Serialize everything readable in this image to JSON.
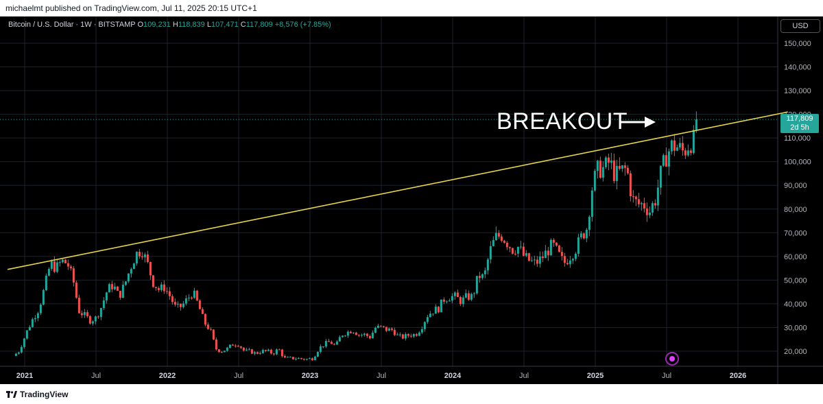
{
  "header": {
    "publisher_text": "michaelmt published on TradingView.com, Jul 11, 2025 20:15 UTC+1"
  },
  "legend": {
    "symbol": "Bitcoin / U.S. Dollar · 1W · BITSTAMP",
    "o_label": "O",
    "o_value": "109,231",
    "h_label": "H",
    "h_value": "118,839",
    "l_label": "L",
    "l_value": "107,471",
    "c_label": "C",
    "c_value": "117,809",
    "change": "+8,576 (+7.85%)"
  },
  "currency": "USD",
  "price_tag": {
    "price": "117,809",
    "countdown": "2d 5h"
  },
  "annotation": "BREAKOUT",
  "footer": {
    "brand": "TradingView"
  },
  "colors": {
    "up": "#26a69a",
    "down": "#ef5350",
    "trendline": "#e8d44d",
    "grid": "#1e222d",
    "axis_text": "#b2b5be"
  },
  "chart_data": {
    "type": "candlestick",
    "interval": "1W",
    "ylim": [
      13000,
      158000
    ],
    "y_ticks": [
      20000,
      30000,
      40000,
      50000,
      60000,
      70000,
      80000,
      90000,
      100000,
      110000,
      120000,
      130000,
      140000,
      150000
    ],
    "y_tick_labels": [
      "20,000",
      "30,000",
      "40,000",
      "50,000",
      "60,000",
      "70,000",
      "80,000",
      "90,000",
      "100,000",
      "110,000",
      "120,000",
      "130,000",
      "140,000",
      "150,000"
    ],
    "x_ticks": [
      {
        "label": "2021",
        "t": 0,
        "major": true
      },
      {
        "label": "Jul",
        "t": 0.5,
        "major": false
      },
      {
        "label": "2022",
        "t": 1,
        "major": true
      },
      {
        "label": "Jul",
        "t": 1.5,
        "major": false
      },
      {
        "label": "2023",
        "t": 2,
        "major": true
      },
      {
        "label": "Jul",
        "t": 2.5,
        "major": false
      },
      {
        "label": "2024",
        "t": 3,
        "major": true
      },
      {
        "label": "Jul",
        "t": 3.5,
        "major": false
      },
      {
        "label": "2025",
        "t": 4,
        "major": true
      },
      {
        "label": "Jul",
        "t": 4.5,
        "major": false
      },
      {
        "label": "2026",
        "t": 5,
        "major": true
      }
    ],
    "close_path": [
      [
        -0.08,
        18000
      ],
      [
        -0.04,
        20000
      ],
      [
        0.02,
        29000
      ],
      [
        0.06,
        34000
      ],
      [
        0.1,
        38000
      ],
      [
        0.14,
        47000
      ],
      [
        0.18,
        57000
      ],
      [
        0.22,
        55000
      ],
      [
        0.26,
        58000
      ],
      [
        0.3,
        57000
      ],
      [
        0.34,
        50000
      ],
      [
        0.38,
        37000
      ],
      [
        0.42,
        35000
      ],
      [
        0.46,
        33000
      ],
      [
        0.5,
        34000
      ],
      [
        0.54,
        39000
      ],
      [
        0.58,
        46000
      ],
      [
        0.62,
        48000
      ],
      [
        0.66,
        43000
      ],
      [
        0.7,
        48000
      ],
      [
        0.74,
        55000
      ],
      [
        0.78,
        61000
      ],
      [
        0.82,
        63000
      ],
      [
        0.86,
        57000
      ],
      [
        0.9,
        49000
      ],
      [
        0.94,
        46000
      ],
      [
        0.98,
        47000
      ],
      [
        1.02,
        43000
      ],
      [
        1.06,
        38000
      ],
      [
        1.1,
        39000
      ],
      [
        1.14,
        42000
      ],
      [
        1.18,
        45000
      ],
      [
        1.22,
        39000
      ],
      [
        1.26,
        32000
      ],
      [
        1.3,
        29000
      ],
      [
        1.34,
        21000
      ],
      [
        1.38,
        20000
      ],
      [
        1.42,
        21000
      ],
      [
        1.46,
        23000
      ],
      [
        1.5,
        23000
      ],
      [
        1.54,
        20000
      ],
      [
        1.58,
        20000
      ],
      [
        1.62,
        19000
      ],
      [
        1.66,
        20000
      ],
      [
        1.7,
        20000
      ],
      [
        1.74,
        19000
      ],
      [
        1.78,
        21000
      ],
      [
        1.82,
        17000
      ],
      [
        1.86,
        17000
      ],
      [
        1.9,
        17000
      ],
      [
        1.94,
        16800
      ],
      [
        1.98,
        16600
      ],
      [
        2.02,
        17000
      ],
      [
        2.06,
        21000
      ],
      [
        2.1,
        23000
      ],
      [
        2.14,
        24000
      ],
      [
        2.18,
        22000
      ],
      [
        2.22,
        27000
      ],
      [
        2.26,
        28000
      ],
      [
        2.3,
        29000
      ],
      [
        2.34,
        27000
      ],
      [
        2.38,
        27000
      ],
      [
        2.42,
        26000
      ],
      [
        2.46,
        30000
      ],
      [
        2.5,
        30000
      ],
      [
        2.54,
        29000
      ],
      [
        2.58,
        29000
      ],
      [
        2.62,
        26000
      ],
      [
        2.66,
        26000
      ],
      [
        2.7,
        27000
      ],
      [
        2.74,
        27000
      ],
      [
        2.78,
        30000
      ],
      [
        2.82,
        35000
      ],
      [
        2.86,
        37000
      ],
      [
        2.9,
        38000
      ],
      [
        2.94,
        42000
      ],
      [
        2.98,
        43000
      ],
      [
        3.02,
        43000
      ],
      [
        3.06,
        41000
      ],
      [
        3.1,
        43000
      ],
      [
        3.14,
        43000
      ],
      [
        3.18,
        52000
      ],
      [
        3.22,
        51000
      ],
      [
        3.26,
        62000
      ],
      [
        3.3,
        68000
      ],
      [
        3.34,
        69000
      ],
      [
        3.38,
        66000
      ],
      [
        3.42,
        63000
      ],
      [
        3.46,
        64000
      ],
      [
        3.5,
        60000
      ],
      [
        3.54,
        58000
      ],
      [
        3.58,
        57000
      ],
      [
        3.62,
        59000
      ],
      [
        3.66,
        62000
      ],
      [
        3.7,
        65000
      ],
      [
        3.74,
        61000
      ],
      [
        3.78,
        57000
      ],
      [
        3.82,
        60000
      ],
      [
        3.86,
        63000
      ],
      [
        3.9,
        68000
      ],
      [
        3.94,
        72000
      ],
      [
        3.98,
        90000
      ],
      [
        4.02,
        97000
      ],
      [
        4.06,
        97000
      ],
      [
        4.1,
        100000
      ],
      [
        4.14,
        94000
      ],
      [
        4.18,
        96000
      ],
      [
        4.22,
        97000
      ],
      [
        4.26,
        84000
      ],
      [
        4.3,
        82000
      ],
      [
        4.34,
        82000
      ],
      [
        4.38,
        79000
      ],
      [
        4.42,
        84000
      ],
      [
        4.46,
        95000
      ],
      [
        4.5,
        103000
      ],
      [
        4.54,
        107000
      ],
      [
        4.58,
        106000
      ],
      [
        4.62,
        104000
      ],
      [
        4.66,
        108000
      ],
      [
        4.7,
        109231
      ],
      [
        4.725,
        117809
      ]
    ],
    "trendline": {
      "from": [
        -0.12,
        54500
      ],
      "to": [
        5.35,
        121000
      ]
    },
    "current_close": 117809,
    "breakout_label": "BREAKOUT"
  }
}
